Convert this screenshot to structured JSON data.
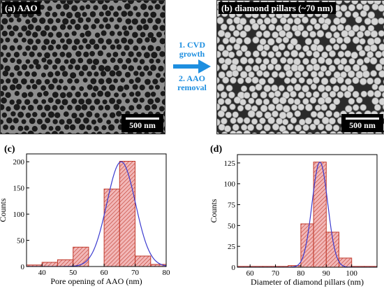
{
  "panels": {
    "a": {
      "label": "(a) AAO",
      "scalebar": "500 nm"
    },
    "b": {
      "label": "(b) diamond pillars (~70 nm)",
      "scalebar": "500 nm"
    }
  },
  "process_steps": [
    "1. CVD",
    "growth",
    "2. AAO",
    "removal"
  ],
  "colors": {
    "step_text": "#1e8fe0",
    "bar_fill": "#f2b8b8",
    "bar_stroke": "#c0392b",
    "hatch": "#c0392b",
    "fit_line": "#3b3bcf"
  },
  "chart_data": [
    {
      "panel_label": "(c)",
      "type": "bar",
      "bar_width": 5,
      "categories": [
        37.5,
        42.5,
        47.5,
        52.5,
        57.5,
        62.5,
        67.5,
        72.5,
        77.5
      ],
      "values": [
        3,
        8,
        13,
        37,
        0,
        148,
        201,
        20,
        4
      ],
      "fit": {
        "kind": "gaussian",
        "center": 65.5,
        "sigma": 4.6,
        "peak": 200
      },
      "xlabel": "Pore opening of AAO (nm)",
      "ylabel": "Counts",
      "xlim": [
        35,
        80
      ],
      "ylim": [
        0,
        215
      ],
      "xticks": [
        40,
        50,
        60,
        70,
        80
      ],
      "yticks": [
        0,
        50,
        100,
        150,
        200
      ]
    },
    {
      "panel_label": "(d)",
      "type": "bar",
      "bar_width": 5,
      "categories": [
        57.5,
        62.5,
        67.5,
        72.5,
        77.5,
        82.5,
        87.5,
        92.5,
        97.5,
        102.5,
        107.5
      ],
      "values": [
        1,
        1,
        1,
        1,
        2,
        52,
        126,
        42,
        11,
        1,
        1
      ],
      "fit": {
        "kind": "gaussian",
        "center": 87.5,
        "sigma": 3.1,
        "peak": 126
      },
      "xlabel": "Diameter of diamond pillars (nm)",
      "ylabel": "Counts",
      "xlim": [
        55,
        110
      ],
      "ylim": [
        0,
        135
      ],
      "xticks": [
        60,
        70,
        80,
        90,
        100
      ],
      "yticks": [
        0,
        25,
        50,
        75,
        100,
        125
      ]
    }
  ]
}
